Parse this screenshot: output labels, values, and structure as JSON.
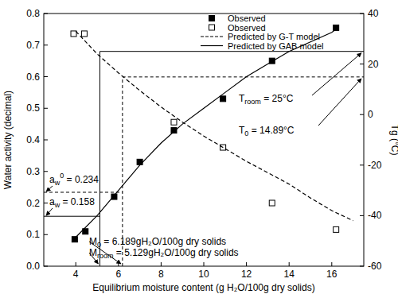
{
  "chart_data": {
    "type": "scatter",
    "xlabel": "Equilibrium moisture content (g H₂O/100g dry solids)",
    "ylabel": "Water activity (decimal)",
    "y2label": "Tg (°C)",
    "xlim": [
      2.5,
      17.5
    ],
    "xticks": [
      4,
      6,
      8,
      10,
      12,
      14,
      16
    ],
    "ylim": [
      0,
      0.8
    ],
    "yticks": [
      {
        "value": 0,
        "label": "0.0"
      },
      {
        "value": 0.1,
        "label": "0.1"
      },
      {
        "value": 0.2,
        "label": "0.2"
      },
      {
        "value": 0.3,
        "label": "0.3"
      },
      {
        "value": 0.4,
        "label": "0.4"
      },
      {
        "value": 0.5,
        "label": "0.5"
      },
      {
        "value": 0.6,
        "label": "0.6"
      },
      {
        "value": 0.7,
        "label": "0.7"
      },
      {
        "value": 0.8,
        "label": "0.8"
      }
    ],
    "y2lim": [
      -60,
      40
    ],
    "y2ticks": [
      -60,
      -40,
      -20,
      0,
      20,
      40
    ],
    "legend": "top",
    "series": [
      {
        "name": "Observed",
        "type": "scatter",
        "marker": "square-filled",
        "color": "#000000",
        "x": [
          3.95,
          4.45,
          5.8,
          7.0,
          8.6,
          10.9,
          13.2,
          16.2
        ],
        "values": [
          0.085,
          0.11,
          0.22,
          0.33,
          0.43,
          0.53,
          0.65,
          0.755
        ]
      },
      {
        "name": "Observed",
        "type": "scatter",
        "marker": "square-open",
        "color": "#000000",
        "axis": "y2",
        "x": [
          3.9,
          4.4,
          8.6,
          10.9,
          13.2,
          16.2
        ],
        "values": [
          32,
          32,
          -3,
          -13,
          -35,
          -45.5
        ]
      },
      {
        "name": "Predicted by G-T model",
        "type": "line",
        "line_style": "dashed",
        "color": "#000000",
        "axis": "y2",
        "x": [
          4,
          5,
          6,
          7,
          8,
          9,
          10,
          11,
          12,
          13,
          14,
          15,
          16,
          17
        ],
        "values": [
          33,
          24,
          16.5,
          9.5,
          3,
          -3,
          -8.5,
          -13.5,
          -18.5,
          -23,
          -27.5,
          -33,
          -38,
          -42
        ]
      },
      {
        "name": "Predicted by GAB model",
        "type": "line",
        "line_style": "solid",
        "color": "#000000",
        "x": [
          3.9,
          5,
          6,
          7,
          8,
          9,
          10,
          11,
          12,
          13,
          14,
          15,
          16,
          16.3
        ],
        "values": [
          0.085,
          0.16,
          0.24,
          0.32,
          0.39,
          0.45,
          0.5,
          0.55,
          0.6,
          0.64,
          0.68,
          0.71,
          0.74,
          0.755
        ]
      }
    ],
    "annotations": [
      {
        "base": "a",
        "sub": "w",
        "sup": "0",
        "rest": " = 0.234",
        "value": 0.234
      },
      {
        "base": "a",
        "sub": "w",
        "sup": "",
        "rest": " = 0.158",
        "value": 0.158
      },
      {
        "base": "M",
        "sub": "0",
        "sup": "",
        "rest": " = 6.189gH₂O/100g dry solids",
        "value": 6.189
      },
      {
        "base": "M",
        "sub": "room",
        "sup": "",
        "rest": " = 5.129gH₂O/100g dry solids",
        "value": 5.129
      },
      {
        "base": "T",
        "sub": "room",
        "sup": "",
        "rest": " = 25°C",
        "value": 25
      },
      {
        "base": "T",
        "sub": "0",
        "sup": "",
        "rest": " = 14.89°C",
        "value": 14.89
      }
    ]
  }
}
